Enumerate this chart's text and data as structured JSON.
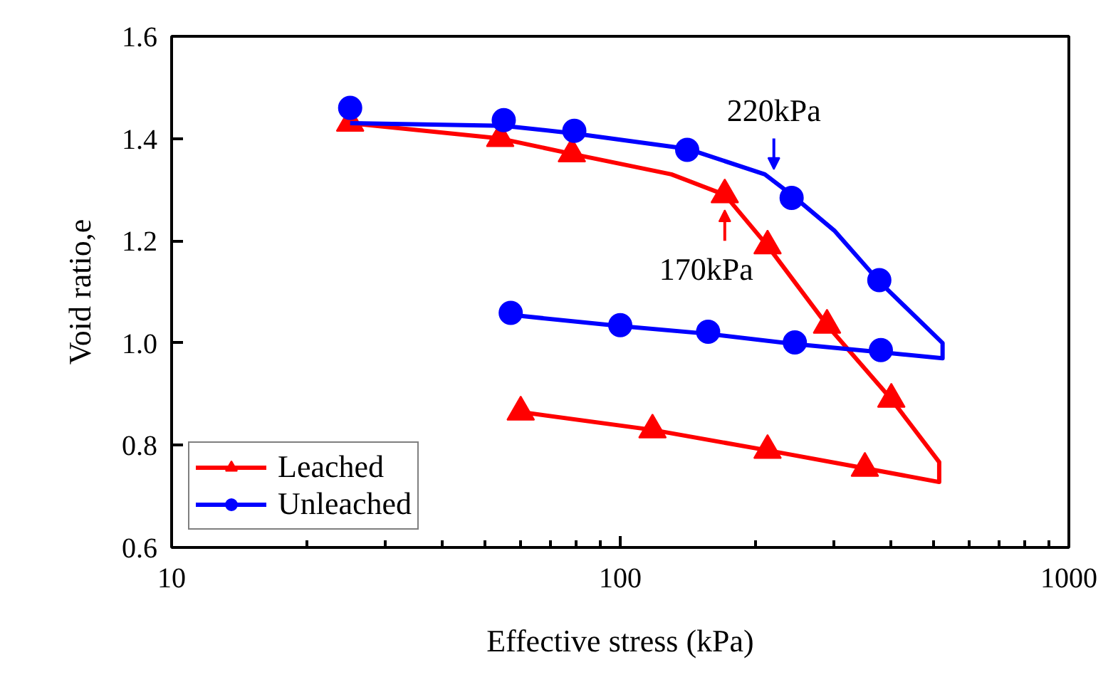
{
  "chart_data": {
    "type": "line",
    "xlabel": "Effective stress (kPa)",
    "ylabel": "Void ratio,e",
    "log": "x",
    "xlim": [
      10,
      1000
    ],
    "xticks": [
      10,
      100,
      1000
    ],
    "ylim": [
      0.6,
      1.6
    ],
    "yticks": [
      0.6,
      0.8,
      {
        "value": 1.0,
        "label": "1.0"
      },
      1.2,
      1.4,
      1.6
    ],
    "grid": false,
    "legend": "bottom left",
    "line_style": "solid",
    "series": [
      {
        "color": "#ff0000",
        "marker": "none",
        "x": [
          25,
          54,
          78,
          130,
          171,
          213,
          289,
          402,
          514,
          514,
          351,
          213,
          118,
          60
        ],
        "values": [
          1.43,
          1.4,
          1.37,
          1.33,
          1.29,
          1.19,
          1.035,
          0.89,
          0.767,
          0.728,
          0.755,
          0.79,
          0.83,
          0.865
        ]
      },
      {
        "type": "scatter",
        "name": "Leached",
        "color": "#ff0000",
        "marker": "triangle",
        "x": [
          25,
          54,
          78,
          171,
          213,
          289,
          402,
          351,
          213,
          118,
          60
        ],
        "values": [
          1.43,
          1.4,
          1.37,
          1.29,
          1.19,
          1.035,
          0.89,
          0.755,
          0.79,
          0.83,
          0.865
        ]
      },
      {
        "color": "#0000ff",
        "marker": "none",
        "x": [
          25,
          55,
          79,
          141,
          210,
          241,
          300,
          378,
          523,
          523,
          381,
          245,
          157,
          100,
          57
        ],
        "values": [
          1.43,
          1.425,
          1.41,
          1.38,
          1.33,
          1.29,
          1.22,
          1.12,
          1.0,
          0.97,
          0.982,
          0.998,
          1.018,
          1.033,
          1.055
        ]
      },
      {
        "type": "scatter",
        "name": "Unleached",
        "color": "#0000ff",
        "marker": "circle",
        "x": [
          25,
          55,
          79,
          141,
          241,
          378,
          381,
          245,
          157,
          100,
          57
        ],
        "values": [
          1.46,
          1.436,
          1.415,
          1.378,
          1.284,
          1.123,
          0.986,
          1.001,
          1.022,
          1.035,
          1.059
        ]
      }
    ],
    "annotations": [
      {
        "text": "220kPa",
        "x": 220,
        "y": 1.33
      },
      {
        "text": "170kPa",
        "x": 171,
        "y": 1.27
      }
    ]
  }
}
